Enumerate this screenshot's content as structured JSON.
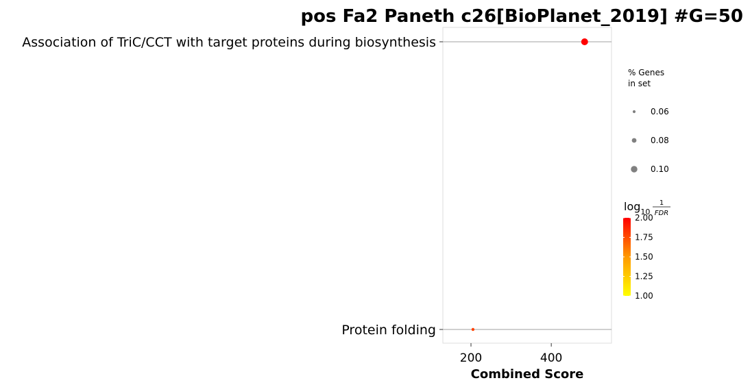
{
  "chart_data": {
    "type": "scatter",
    "title": "pos Fa2 Paneth c26[BioPlanet_2019] #G=50",
    "xlabel": "Combined Score",
    "ylabel": "",
    "xlim": [
      130,
      550
    ],
    "xticks": [
      200,
      400
    ],
    "categories": [
      "Association of TriC/CCT with target proteins during biosynthesis",
      "Protein folding"
    ],
    "points": [
      {
        "term": "Association of TriC/CCT with target proteins during biosynthesis",
        "combined_score": 483,
        "pct_genes": 0.1,
        "log10_inv_fdr": 2.0
      },
      {
        "term": "Protein folding",
        "combined_score": 205,
        "pct_genes": 0.06,
        "log10_inv_fdr": 1.78
      }
    ],
    "size_legend": {
      "title_line1": "% Genes",
      "title_line2": "in set",
      "items": [
        {
          "label": "0.06",
          "value": 0.06
        },
        {
          "label": "0.08",
          "value": 0.08
        },
        {
          "label": "0.10",
          "value": 0.1
        }
      ]
    },
    "color_legend": {
      "title_main": "log",
      "title_sub": "10",
      "title_num": "1",
      "title_den": "FDR",
      "range": [
        1.0,
        2.0
      ],
      "ticks": [
        "2.00",
        "1.75",
        "1.50",
        "1.25",
        "1.00"
      ],
      "low_color": "#ffff00",
      "high_color": "#ff0000"
    },
    "grid": false,
    "legend_position": "right"
  }
}
